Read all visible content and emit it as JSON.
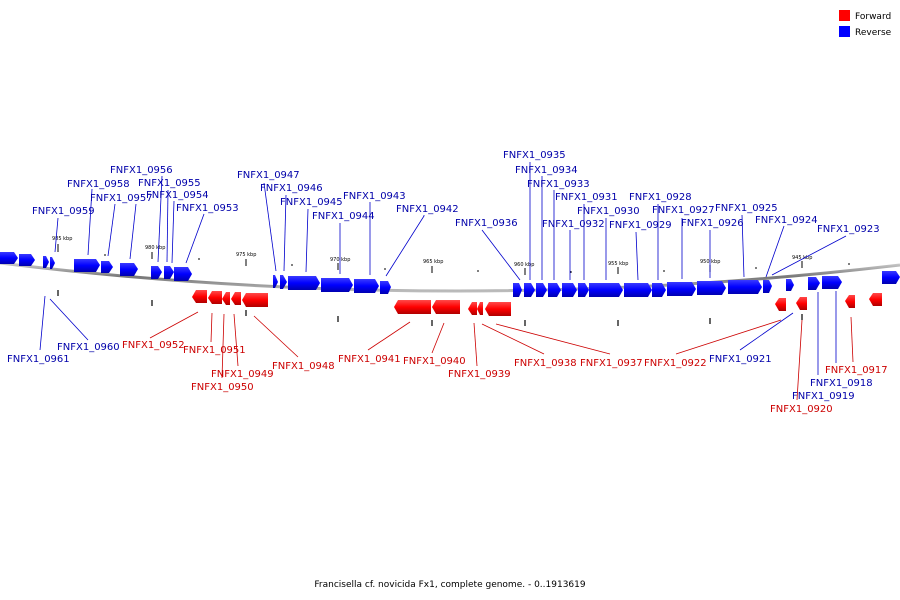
{
  "legend": [
    {
      "label": "Forward",
      "color": "#ff0000"
    },
    {
      "label": "Reverse",
      "color": "#0000ff"
    }
  ],
  "caption": "Francisella cf. novicida Fx1, complete genome. - 0..1913619",
  "scale_labels": [
    "985 kbp",
    "980 kbp",
    "975 kbp",
    "970 kbp",
    "965 kbp",
    "960 kbp",
    "955 kbp",
    "950 kbp",
    "945 kbp"
  ],
  "colors": {
    "forward": "#ff0000",
    "reverse": "#0000ff",
    "forward_label": "#cc0000",
    "reverse_label": "#0000aa",
    "backbone": "#888888"
  },
  "genes": {
    "reverse": [
      "FNFX1_0961",
      "FNFX1_0960",
      "FNFX1_0959",
      "FNFX1_0958",
      "FNFX1_0957",
      "FNFX1_0956",
      "FNFX1_0955",
      "FNFX1_0954",
      "FNFX1_0953",
      "FNFX1_0947",
      "FNFX1_0946",
      "FNFX1_0945",
      "FNFX1_0944",
      "FNFX1_0943",
      "FNFX1_0942",
      "FNFX1_0936",
      "FNFX1_0935",
      "FNFX1_0934",
      "FNFX1_0933",
      "FNFX1_0932",
      "FNFX1_0931",
      "FNFX1_0930",
      "FNFX1_0929",
      "FNFX1_0928",
      "FNFX1_0927",
      "FNFX1_0926",
      "FNFX1_0925",
      "FNFX1_0924",
      "FNFX1_0923",
      "FNFX1_0921",
      "FNFX1_0918",
      "FNFX1_0919"
    ],
    "forward": [
      "FNFX1_0952",
      "FNFX1_0951",
      "FNFX1_0949",
      "FNFX1_0950",
      "FNFX1_0948",
      "FNFX1_0941",
      "FNFX1_0940",
      "FNFX1_0939",
      "FNFX1_0938",
      "FNFX1_0937",
      "FNFX1_0922",
      "FNFX1_0920",
      "FNFX1_0917"
    ]
  }
}
